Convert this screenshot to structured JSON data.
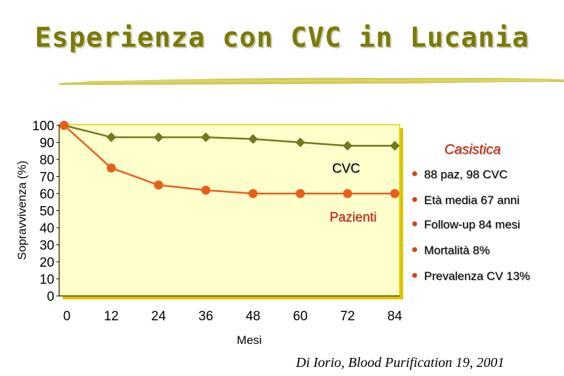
{
  "title": "Esperienza con CVC in Lucania",
  "chart_data": {
    "type": "line",
    "x": [
      0,
      12,
      24,
      36,
      48,
      60,
      72,
      84
    ],
    "xlabel": "Mesi",
    "ylabel": "Sopravvivenza (%)",
    "xticks": [
      "0",
      "12",
      "24",
      "36",
      "48",
      "60",
      "72",
      "84"
    ],
    "yticks": [
      "0",
      "10",
      "20",
      "30",
      "40",
      "50",
      "60",
      "70",
      "80",
      "90",
      "100"
    ],
    "xlim": [
      0,
      84
    ],
    "ylim": [
      0,
      100
    ],
    "grid": false,
    "series": [
      {
        "name": "CVC",
        "marker": "diamond",
        "color": "#6e7a1c",
        "values": [
          100,
          93,
          93,
          93,
          92,
          90,
          88,
          88
        ]
      },
      {
        "name": "Pazienti",
        "marker": "circle",
        "color": "#e85e1c",
        "values": [
          100,
          75,
          65,
          62,
          60,
          60,
          60,
          60
        ]
      }
    ]
  },
  "casistica": {
    "title": "Casistica",
    "items": [
      "88 paz,  98 CVC",
      "Età media 67 anni",
      "Follow-up 84 mesi",
      "Mortalità 8%",
      "Prevalenza CV 13%"
    ]
  },
  "citation": "Di Iorio, Blood Purification 19, 2001",
  "colors": {
    "plot_background": "#ffffcc",
    "plot_border": "#e6c800",
    "title": "#7a7a0c",
    "bullet": "#d0461a",
    "casistica_title": "#cc2200"
  }
}
